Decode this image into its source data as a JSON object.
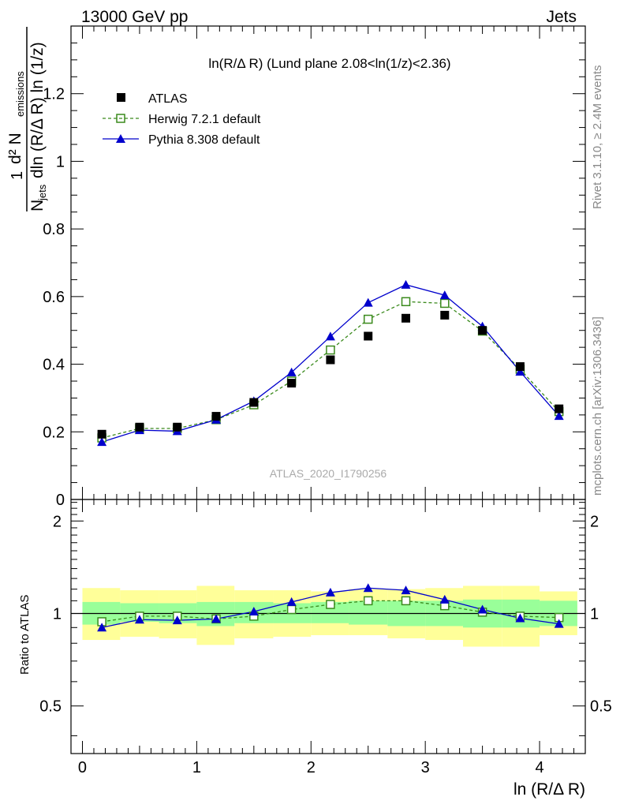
{
  "header": {
    "left": "13000 GeV pp",
    "right": "Jets"
  },
  "side_labels": {
    "rivet": "Rivet 3.1.10, ≥ 2.4M events",
    "mcplots": "mcplots.cern.ch [arXiv:1306.3436]"
  },
  "title": "ln(R/Δ R) (Lund plane 2.08<ln(1/z)<2.36)",
  "watermark": "ATLAS_2020_I1790256",
  "legend": {
    "atlas": "ATLAS",
    "herwig": "Herwig 7.2.1 default",
    "pythia": "Pythia 8.308 default"
  },
  "colors": {
    "data": "#000000",
    "herwig": "#3a8a1c",
    "pythia": "#0000cc",
    "band_inner": "#99ff99",
    "band_outer": "#ffff99"
  },
  "chart_data": [
    {
      "type": "scatter",
      "panel": "main",
      "ylabel": "1/N_jets d²N_emissions / dln(R/ΔR) ln(1/z)",
      "xlim": [
        -0.1,
        4.4
      ],
      "ylim": [
        0,
        1.4
      ],
      "x_ticks": [
        0,
        1,
        2,
        3,
        4
      ],
      "y_ticks": [
        0,
        0.2,
        0.4,
        0.6,
        0.8,
        1,
        1.2
      ],
      "y_tick_labels": [
        "0",
        "0.2",
        "0.4",
        "0.6",
        "0.8",
        "1",
        "1.2"
      ],
      "x": [
        0.17,
        0.5,
        0.83,
        1.17,
        1.5,
        1.83,
        2.17,
        2.5,
        2.83,
        3.17,
        3.5,
        3.83,
        4.17
      ],
      "series": [
        {
          "name": "ATLAS",
          "values": [
            0.193,
            0.214,
            0.214,
            0.246,
            0.287,
            0.344,
            0.413,
            0.483,
            0.536,
            0.545,
            0.5,
            0.393,
            0.268
          ]
        },
        {
          "name": "Herwig 7.2.1 default",
          "values": [
            0.182,
            0.21,
            0.21,
            0.236,
            0.28,
            0.35,
            0.442,
            0.533,
            0.585,
            0.58,
            0.498,
            0.385,
            0.26
          ]
        },
        {
          "name": "Pythia 8.308 default",
          "values": [
            0.17,
            0.205,
            0.202,
            0.236,
            0.291,
            0.376,
            0.482,
            0.582,
            0.635,
            0.604,
            0.512,
            0.378,
            0.247
          ]
        }
      ]
    },
    {
      "type": "line",
      "panel": "ratio",
      "ylabel": "Ratio to ATLAS",
      "xlabel": "ln (R/Δ R)",
      "xlim": [
        -0.1,
        4.4
      ],
      "ylim": [
        0.35,
        2.35
      ],
      "x_ticks": [
        0,
        1,
        2,
        3,
        4
      ],
      "y_ticks": [
        0.5,
        1,
        2
      ],
      "y_tick_labels": [
        "0.5",
        "1",
        "2"
      ],
      "x": [
        0.17,
        0.5,
        0.83,
        1.17,
        1.5,
        1.83,
        2.17,
        2.5,
        2.83,
        3.17,
        3.5,
        3.83,
        4.17
      ],
      "bin_edges": [
        0,
        0.33,
        0.67,
        1.0,
        1.33,
        1.67,
        2.0,
        2.33,
        2.67,
        3.0,
        3.33,
        3.67,
        4.0,
        4.33
      ],
      "band_inner": [
        [
          0.92,
          1.09
        ],
        [
          0.94,
          1.08
        ],
        [
          0.93,
          1.08
        ],
        [
          0.91,
          1.09
        ],
        [
          0.93,
          1.09
        ],
        [
          0.93,
          1.08
        ],
        [
          0.93,
          1.09
        ],
        [
          0.92,
          1.1
        ],
        [
          0.91,
          1.1
        ],
        [
          0.91,
          1.1
        ],
        [
          0.9,
          1.11
        ],
        [
          0.9,
          1.11
        ],
        [
          0.91,
          1.1
        ]
      ],
      "band_outer": [
        [
          0.82,
          1.21
        ],
        [
          0.84,
          1.19
        ],
        [
          0.83,
          1.19
        ],
        [
          0.79,
          1.23
        ],
        [
          0.83,
          1.19
        ],
        [
          0.84,
          1.19
        ],
        [
          0.85,
          1.18
        ],
        [
          0.85,
          1.2
        ],
        [
          0.83,
          1.2
        ],
        [
          0.82,
          1.21
        ],
        [
          0.78,
          1.23
        ],
        [
          0.78,
          1.23
        ],
        [
          0.85,
          1.18
        ]
      ],
      "series": [
        {
          "name": "Herwig 7.2.1 default",
          "values": [
            0.94,
            0.98,
            0.98,
            0.96,
            0.98,
            1.03,
            1.07,
            1.1,
            1.1,
            1.06,
            1.01,
            0.98,
            0.97
          ]
        },
        {
          "name": "Pythia 8.308 default",
          "values": [
            0.9,
            0.955,
            0.95,
            0.96,
            1.015,
            1.09,
            1.17,
            1.21,
            1.19,
            1.11,
            1.03,
            0.965,
            0.925
          ]
        }
      ]
    }
  ],
  "xlabel": "ln (R/Δ R)",
  "ratio_ylabel": "Ratio to ATLAS"
}
